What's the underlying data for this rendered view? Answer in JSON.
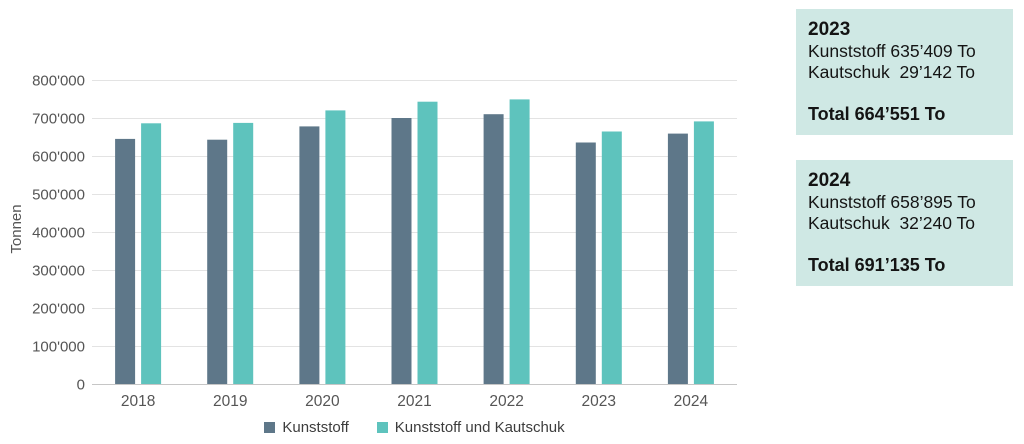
{
  "chart_data": {
    "type": "bar",
    "title": "",
    "xlabel": "",
    "ylabel": "Tonnen",
    "categories": [
      "2018",
      "2019",
      "2020",
      "2021",
      "2022",
      "2023",
      "2024"
    ],
    "series": [
      {
        "name": "Kunststoff",
        "color": "#5E7789",
        "values": [
          645000,
          643000,
          678000,
          700000,
          710000,
          635409,
          658895
        ]
      },
      {
        "name": "Kunststoff und Kautschuk",
        "color": "#5EC3BD",
        "values": [
          686000,
          687000,
          720000,
          743000,
          749000,
          664551,
          691135
        ]
      }
    ],
    "ylim": [
      0,
      800000
    ],
    "ytick_step": 100000,
    "ytick_labels": [
      "0",
      "100'000",
      "200'000",
      "300'000",
      "400'000",
      "500'000",
      "600'000",
      "700'000",
      "800'000"
    ],
    "grid": true,
    "legend_position": "bottom"
  },
  "info_boxes": [
    {
      "year": "2023",
      "lines": [
        "Kunststoff 635’409 To",
        "Kautschuk  29’142 To"
      ],
      "total": "Total 664’551 To"
    },
    {
      "year": "2024",
      "lines": [
        "Kunststoff 658’895 To",
        "Kautschuk  32’240 To"
      ],
      "total": "Total 691’135 To"
    }
  ],
  "colors": {
    "box_bg": "#CFE8E4",
    "grid": "#E3E3E3",
    "baseline": "#C6C6C6",
    "axis_text": "#555555",
    "legend_text": "#3D3D3D"
  }
}
